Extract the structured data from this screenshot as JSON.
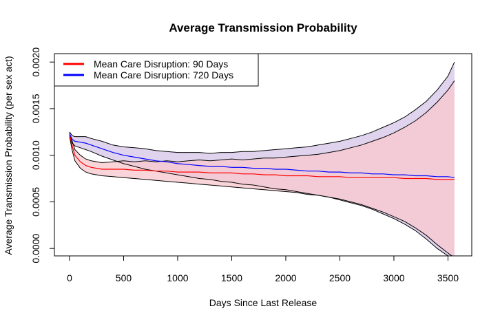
{
  "chart_data": {
    "type": "line",
    "title": "Average Transmission Probability",
    "xlabel": "Days Since Last Release",
    "ylabel": "Average Transmission Probability (per sex act)",
    "xlim": [
      -140,
      3720
    ],
    "ylim": [
      -8e-05,
      0.00209
    ],
    "x_ticks": [
      0,
      500,
      1000,
      1500,
      2000,
      2500,
      3000,
      3500
    ],
    "x_tick_labels": [
      "0",
      "500",
      "1000",
      "1500",
      "2000",
      "2500",
      "3000",
      "3500"
    ],
    "y_ticks": [
      0.0,
      0.0005,
      0.001,
      0.0015,
      0.002
    ],
    "y_tick_labels": [
      "0.0000",
      "0.0005",
      "0.0010",
      "0.0015",
      "0.0020"
    ],
    "legend_position": "top-left",
    "grid": false,
    "series": [
      {
        "name": "Mean Care Disruption: 90 Days",
        "color": "#ff0000",
        "band_color": "#f7c9cf",
        "x": [
          0,
          25,
          50,
          100,
          150,
          200,
          300,
          400,
          500,
          600,
          700,
          800,
          900,
          1000,
          1100,
          1200,
          1300,
          1400,
          1500,
          1600,
          1700,
          1800,
          1900,
          2000,
          2100,
          2200,
          2300,
          2400,
          2500,
          2600,
          2700,
          2800,
          2900,
          3000,
          3100,
          3200,
          3300,
          3400,
          3500,
          3560
        ],
        "mean": [
          0.00122,
          0.0011,
          0.001,
          0.00093,
          0.00089,
          0.00087,
          0.00085,
          0.00085,
          0.00085,
          0.00084,
          0.00084,
          0.00083,
          0.00083,
          0.00082,
          0.00082,
          0.00082,
          0.00081,
          0.00081,
          0.00081,
          0.0008,
          0.0008,
          0.00079,
          0.00079,
          0.00078,
          0.00078,
          0.00078,
          0.00077,
          0.00077,
          0.00077,
          0.00076,
          0.00076,
          0.00076,
          0.00076,
          0.00076,
          0.00075,
          0.00075,
          0.00075,
          0.00074,
          0.00074,
          0.00074
        ],
        "lower": [
          0.0012,
          0.00105,
          0.00094,
          0.00086,
          0.00082,
          0.0008,
          0.00078,
          0.00077,
          0.00076,
          0.00075,
          0.00074,
          0.00073,
          0.00072,
          0.00071,
          0.0007,
          0.00069,
          0.00068,
          0.00067,
          0.00066,
          0.00065,
          0.00064,
          0.00063,
          0.00062,
          0.00061,
          0.0006,
          0.00058,
          0.00057,
          0.00055,
          0.00053,
          0.0005,
          0.00047,
          0.00043,
          0.00039,
          0.00034,
          0.00029,
          0.00022,
          0.00014,
          4e-05,
          -5e-05,
          -0.0001
        ],
        "upper": [
          0.00124,
          0.00115,
          0.00106,
          0.001,
          0.00096,
          0.00094,
          0.00092,
          0.00093,
          0.00094,
          0.00093,
          0.00094,
          0.00093,
          0.00094,
          0.00093,
          0.00094,
          0.00095,
          0.00094,
          0.00095,
          0.00096,
          0.00095,
          0.00096,
          0.00097,
          0.00097,
          0.00098,
          0.00099,
          0.001,
          0.00101,
          0.00103,
          0.00105,
          0.00108,
          0.00111,
          0.00115,
          0.00119,
          0.00124,
          0.0013,
          0.00137,
          0.00146,
          0.00157,
          0.0017,
          0.0018
        ]
      },
      {
        "name": "Mean Care Disruption: 720 Days",
        "color": "#0000ff",
        "band_color": "#d7c8e8",
        "x": [
          0,
          25,
          50,
          100,
          150,
          200,
          300,
          400,
          500,
          600,
          700,
          800,
          900,
          1000,
          1100,
          1200,
          1300,
          1400,
          1500,
          1600,
          1700,
          1800,
          1900,
          2000,
          2100,
          2200,
          2300,
          2400,
          2500,
          2600,
          2700,
          2800,
          2900,
          3000,
          3100,
          3200,
          3300,
          3400,
          3500,
          3560
        ],
        "mean": [
          0.00123,
          0.00117,
          0.00115,
          0.00114,
          0.00113,
          0.00111,
          0.00107,
          0.00103,
          0.001,
          0.00098,
          0.00096,
          0.00094,
          0.00093,
          0.00091,
          0.0009,
          0.00089,
          0.00088,
          0.00088,
          0.00087,
          0.00087,
          0.00086,
          0.00086,
          0.00085,
          0.00085,
          0.00084,
          0.00083,
          0.00083,
          0.00082,
          0.00082,
          0.00081,
          0.00081,
          0.0008,
          0.0008,
          0.00079,
          0.00079,
          0.00078,
          0.00078,
          0.00077,
          0.00077,
          0.00076
        ],
        "lower": [
          0.00121,
          0.00113,
          0.0011,
          0.00108,
          0.00106,
          0.00104,
          0.00099,
          0.00095,
          0.00091,
          0.00088,
          0.00085,
          0.00083,
          0.00081,
          0.00079,
          0.00077,
          0.00075,
          0.00074,
          0.00072,
          0.00071,
          0.00069,
          0.00068,
          0.00066,
          0.00064,
          0.00063,
          0.00061,
          0.00059,
          0.00057,
          0.00055,
          0.00052,
          0.00049,
          0.00046,
          0.00042,
          0.00037,
          0.00032,
          0.00026,
          0.00019,
          0.0001,
          0.0,
          -8e-05,
          -0.0001
        ],
        "upper": [
          0.00125,
          0.00121,
          0.0012,
          0.0012,
          0.0012,
          0.00118,
          0.00115,
          0.00111,
          0.00109,
          0.00108,
          0.00107,
          0.00105,
          0.00104,
          0.00103,
          0.00103,
          0.00103,
          0.00102,
          0.00103,
          0.00103,
          0.00104,
          0.00104,
          0.00105,
          0.00106,
          0.00107,
          0.00108,
          0.00109,
          0.00111,
          0.00113,
          0.00115,
          0.00118,
          0.00121,
          0.00125,
          0.0013,
          0.00135,
          0.00141,
          0.00149,
          0.00158,
          0.0017,
          0.00185,
          0.002
        ]
      }
    ]
  }
}
